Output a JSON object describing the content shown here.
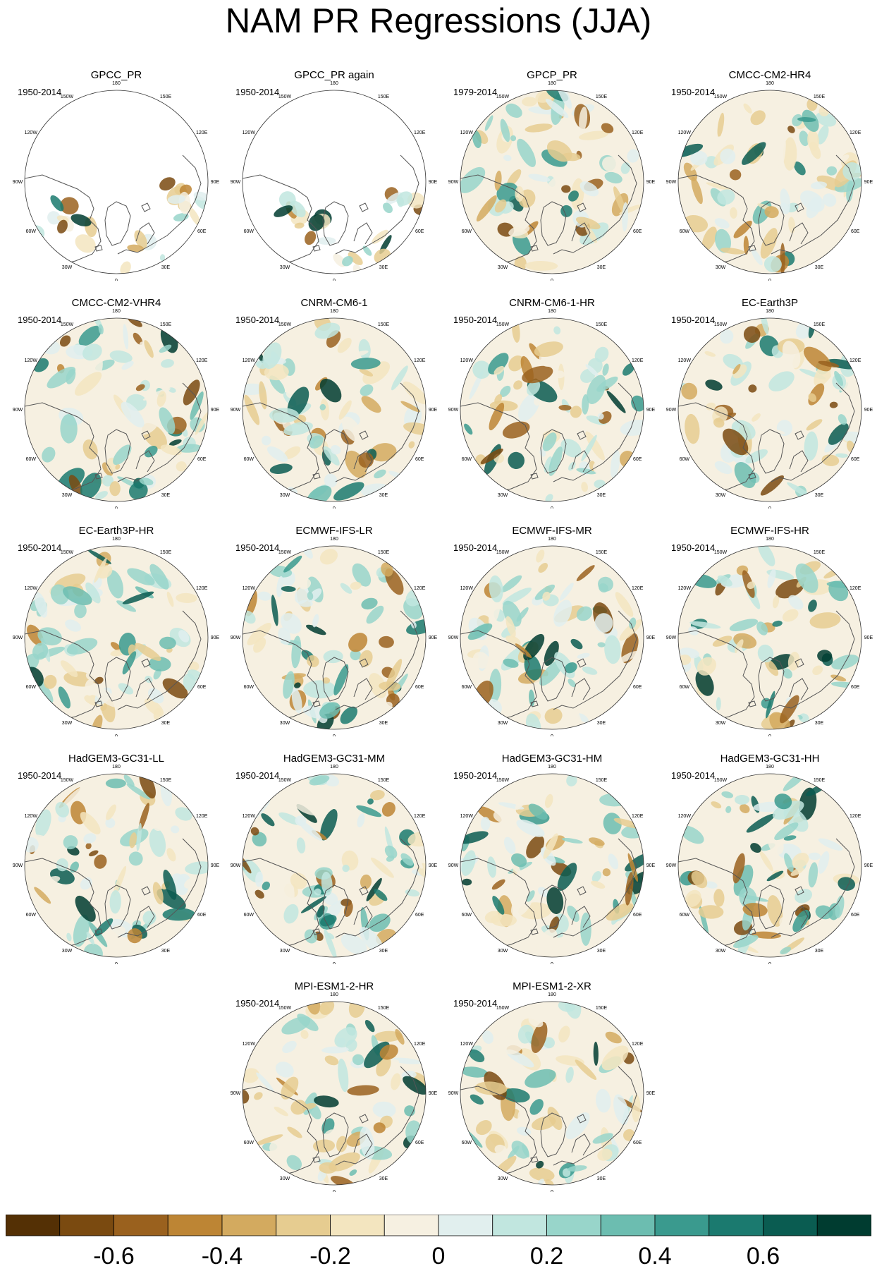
{
  "figure": {
    "title": "NAM PR Regressions (JJA)",
    "longitude_labels": [
      "180",
      "150E",
      "120E",
      "90E",
      "60E",
      "30E",
      "0",
      "30W",
      "60W",
      "90W",
      "120W",
      "150W"
    ]
  },
  "panels": [
    {
      "title": "GPCC_PR",
      "period": "1950-2014",
      "land_only": true
    },
    {
      "title": "GPCC_PR again",
      "period": "1950-2014",
      "land_only": true
    },
    {
      "title": "GPCP_PR",
      "period": "1979-2014",
      "land_only": false
    },
    {
      "title": "CMCC-CM2-HR4",
      "period": "1950-2014",
      "land_only": false
    },
    {
      "title": "CMCC-CM2-VHR4",
      "period": "1950-2014",
      "land_only": false
    },
    {
      "title": "CNRM-CM6-1",
      "period": "1950-2014",
      "land_only": false
    },
    {
      "title": "CNRM-CM6-1-HR",
      "period": "1950-2014",
      "land_only": false
    },
    {
      "title": "EC-Earth3P",
      "period": "1950-2014",
      "land_only": false
    },
    {
      "title": "EC-Earth3P-HR",
      "period": "1950-2014",
      "land_only": false
    },
    {
      "title": "ECMWF-IFS-LR",
      "period": "1950-2014",
      "land_only": false
    },
    {
      "title": "ECMWF-IFS-MR",
      "period": "1950-2014",
      "land_only": false
    },
    {
      "title": "ECMWF-IFS-HR",
      "period": "1950-2014",
      "land_only": false
    },
    {
      "title": "HadGEM3-GC31-LL",
      "period": "1950-2014",
      "land_only": false
    },
    {
      "title": "HadGEM3-GC31-MM",
      "period": "1950-2014",
      "land_only": false
    },
    {
      "title": "HadGEM3-GC31-HM",
      "period": "1950-2014",
      "land_only": false
    },
    {
      "title": "HadGEM3-GC31-HH",
      "period": "1950-2014",
      "land_only": false
    },
    {
      "title": "MPI-ESM1-2-HR",
      "period": "1950-2014",
      "land_only": false
    },
    {
      "title": "MPI-ESM1-2-XR",
      "period": "1950-2014",
      "land_only": false
    }
  ],
  "colorbar": {
    "colors": [
      "#543005",
      "#7a4a10",
      "#9a611e",
      "#bd8534",
      "#d3aa5f",
      "#e6cc90",
      "#f3e5bf",
      "#f6f0e1",
      "#e1efee",
      "#c1e6df",
      "#98d5ca",
      "#6cbdb0",
      "#3a9a8e",
      "#1b7a6f",
      "#0a5c51",
      "#003c30"
    ],
    "tick_labels": [
      "-0.6",
      "-0.4",
      "-0.2",
      "0",
      "0.2",
      "0.4",
      "0.6"
    ],
    "tick_values": [
      -0.6,
      -0.4,
      -0.2,
      0,
      0.2,
      0.4,
      0.6
    ],
    "range": [
      -0.8,
      0.8
    ]
  }
}
